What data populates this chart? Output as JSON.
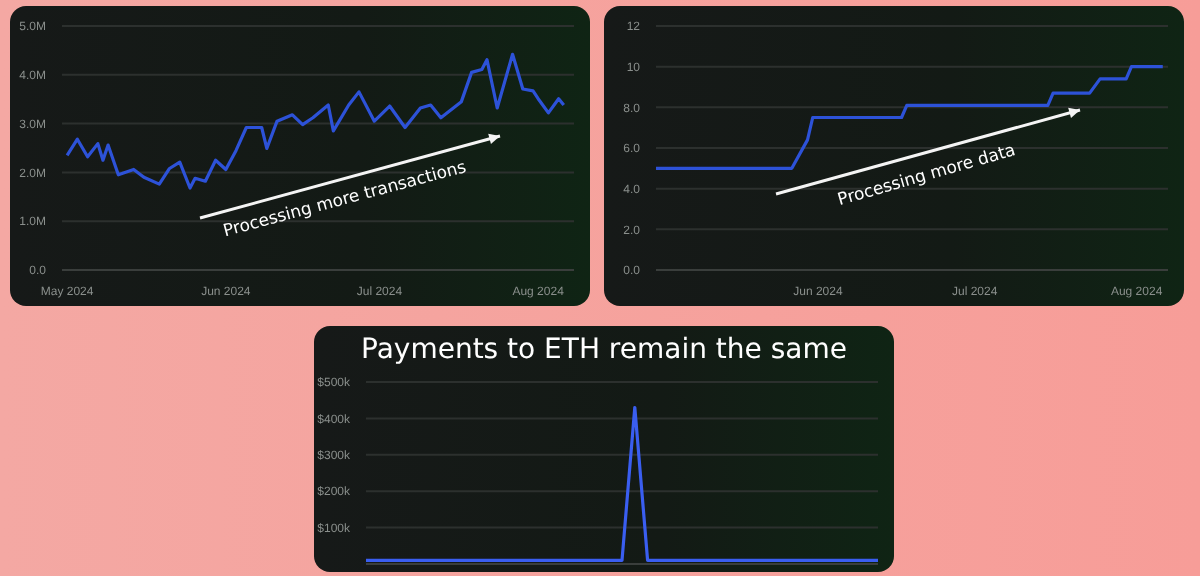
{
  "chart_data": [
    {
      "type": "line",
      "x": [
        "2024-05-01",
        "2024-05-03",
        "2024-05-05",
        "2024-05-07",
        "2024-05-08",
        "2024-05-09",
        "2024-05-11",
        "2024-05-14",
        "2024-05-16",
        "2024-05-19",
        "2024-05-21",
        "2024-05-23",
        "2024-05-25",
        "2024-05-26",
        "2024-05-28",
        "2024-05-30",
        "2024-06-01",
        "2024-06-03",
        "2024-06-05",
        "2024-06-08",
        "2024-06-09",
        "2024-06-11",
        "2024-06-14",
        "2024-06-16",
        "2024-06-18",
        "2024-06-21",
        "2024-06-22",
        "2024-06-25",
        "2024-06-27",
        "2024-06-30",
        "2024-07-03",
        "2024-07-06",
        "2024-07-09",
        "2024-07-11",
        "2024-07-13",
        "2024-07-17",
        "2024-07-19",
        "2024-07-21",
        "2024-07-22",
        "2024-07-24",
        "2024-07-27",
        "2024-07-29",
        "2024-07-31",
        "2024-08-01",
        "2024-08-03",
        "2024-08-05",
        "2024-08-06"
      ],
      "series": [
        {
          "color": "#2d52d8",
          "values": [
            2350000,
            2680000,
            2320000,
            2590000,
            2250000,
            2560000,
            1950000,
            2060000,
            1900000,
            1760000,
            2080000,
            2210000,
            1680000,
            1880000,
            1820000,
            2250000,
            2060000,
            2450000,
            2920000,
            2920000,
            2490000,
            3050000,
            3180000,
            2980000,
            3120000,
            3380000,
            2850000,
            3380000,
            3650000,
            3050000,
            3360000,
            2920000,
            3320000,
            3380000,
            3120000,
            3450000,
            4050000,
            4110000,
            4310000,
            3320000,
            4420000,
            3710000,
            3670000,
            3510000,
            3220000,
            3510000,
            3380000
          ]
        }
      ],
      "xlim": [
        "2024-04-30",
        "2024-08-08"
      ],
      "xticks": [
        {
          "value": "2024-05-01",
          "label": "May 2024"
        },
        {
          "value": "2024-06-01",
          "label": "Jun 2024"
        },
        {
          "value": "2024-07-01",
          "label": "Jul 2024"
        },
        {
          "value": "2024-08-01",
          "label": "Aug 2024"
        }
      ],
      "ylim": [
        0,
        5000000
      ],
      "yticks": [
        {
          "value": 0,
          "label": "0.0"
        },
        {
          "value": 1000000,
          "label": "1.0M"
        },
        {
          "value": 2000000,
          "label": "2.0M"
        },
        {
          "value": 3000000,
          "label": "3.0M"
        },
        {
          "value": 4000000,
          "label": "4.0M"
        },
        {
          "value": 5000000,
          "label": "5.0M"
        }
      ],
      "grid": "y",
      "annotations": [
        "Processing more transactions"
      ]
    },
    {
      "type": "line",
      "x": [
        "2024-05-01",
        "2024-05-27",
        "2024-05-30",
        "2024-05-31",
        "2024-06-17",
        "2024-06-18",
        "2024-07-15",
        "2024-07-16",
        "2024-07-23",
        "2024-07-25",
        "2024-07-30",
        "2024-07-31",
        "2024-08-06"
      ],
      "series": [
        {
          "color": "#2d52d8",
          "values": [
            5.0,
            5.0,
            6.4,
            7.5,
            7.5,
            8.1,
            8.1,
            8.7,
            8.7,
            9.4,
            9.4,
            10.0,
            10.0
          ]
        }
      ],
      "xlim": [
        "2024-05-01",
        "2024-08-07"
      ],
      "xticks": [
        {
          "value": "2024-06-01",
          "label": "Jun 2024"
        },
        {
          "value": "2024-07-01",
          "label": "Jul 2024"
        },
        {
          "value": "2024-08-01",
          "label": "Aug 2024"
        }
      ],
      "ylim": [
        0,
        12
      ],
      "yticks": [
        {
          "value": 0,
          "label": "0.0"
        },
        {
          "value": 2,
          "label": "2.0"
        },
        {
          "value": 4,
          "label": "4.0"
        },
        {
          "value": 6,
          "label": "6.0"
        },
        {
          "value": 8,
          "label": "8.0"
        },
        10,
        12
      ],
      "grid": "y",
      "annotations": [
        "Processing more data"
      ]
    },
    {
      "type": "line",
      "title": "Payments to ETH remain the same",
      "categories": [
        null,
        null,
        null,
        null,
        null,
        null,
        null,
        null,
        null,
        null,
        null,
        null,
        null,
        null,
        null,
        null,
        null,
        null,
        null,
        null,
        null,
        null,
        null,
        null,
        null,
        null,
        null,
        null,
        null,
        null,
        null,
        null,
        null,
        null,
        null,
        null,
        null,
        null,
        null,
        null,
        null
      ],
      "series": [
        {
          "color": "#3a5ef0",
          "values": [
            10000,
            10000,
            10000,
            10000,
            10000,
            10000,
            10000,
            10000,
            10000,
            10000,
            10000,
            10000,
            10000,
            10000,
            10000,
            10000,
            10000,
            10000,
            10000,
            10000,
            10000,
            430000,
            10000,
            10000,
            10000,
            10000,
            10000,
            10000,
            10000,
            10000,
            10000,
            10000,
            10000,
            10000,
            10000,
            10000,
            10000,
            10000,
            10000,
            10000,
            10000
          ]
        }
      ],
      "ylim": [
        0,
        500000
      ],
      "yticks": [
        {
          "value": 0,
          "label": null
        },
        {
          "value": 100000,
          "label": "$100k"
        },
        {
          "value": 200000,
          "label": "$200k"
        },
        {
          "value": 300000,
          "label": "$300k"
        },
        {
          "value": 400000,
          "label": "$400k"
        },
        {
          "value": 500000,
          "label": "$500k"
        }
      ],
      "grid": "y",
      "tick_labels": "y"
    }
  ]
}
